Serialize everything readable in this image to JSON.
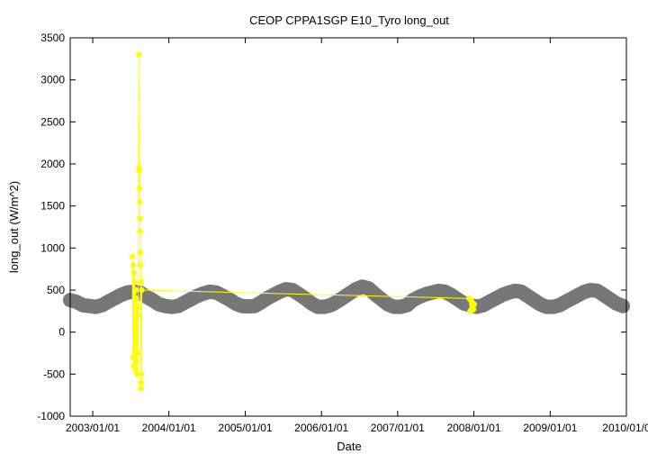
{
  "chart_data": {
    "type": "scatter",
    "title": "CEOP CPPA1SGP E10_Tyro  long_out",
    "xlabel": "Date",
    "ylabel": "long_out (W/m^2)",
    "xlim": [
      "2002/09/15",
      "2010/01/01"
    ],
    "ylim": [
      -1000,
      3500
    ],
    "y_ticks": [
      -1000,
      -500,
      0,
      500,
      1000,
      1500,
      2000,
      2500,
      3000,
      3500
    ],
    "x_ticks": [
      "2003/01/01",
      "2004/01/01",
      "2005/01/01",
      "2006/01/01",
      "2007/01/01",
      "2008/01/01",
      "2009/01/01",
      "2010/01/0"
    ],
    "grid": false,
    "legend": "none",
    "series": [
      {
        "color": "#777777",
        "mode": "points",
        "points": [
          {
            "x": "2002/09/15",
            "y": 380
          },
          {
            "x": "2002/10/15",
            "y": 360
          },
          {
            "x": "2002/11/15",
            "y": 320
          },
          {
            "x": "2002/12/15",
            "y": 310
          },
          {
            "x": "2003/01/15",
            "y": 300
          },
          {
            "x": "2003/02/15",
            "y": 320
          },
          {
            "x": "2003/03/15",
            "y": 360
          },
          {
            "x": "2003/04/15",
            "y": 400
          },
          {
            "x": "2003/05/15",
            "y": 440
          },
          {
            "x": "2003/06/15",
            "y": 470
          },
          {
            "x": "2003/07/15",
            "y": 480
          },
          {
            "x": "2003/08/15",
            "y": 470
          },
          {
            "x": "2003/09/15",
            "y": 420
          },
          {
            "x": "2003/10/15",
            "y": 380
          },
          {
            "x": "2003/11/15",
            "y": 330
          },
          {
            "x": "2003/12/15",
            "y": 310
          },
          {
            "x": "2004/01/15",
            "y": 300
          },
          {
            "x": "2004/02/15",
            "y": 310
          },
          {
            "x": "2004/03/15",
            "y": 350
          },
          {
            "x": "2004/04/15",
            "y": 390
          },
          {
            "x": "2004/05/15",
            "y": 430
          },
          {
            "x": "2004/06/15",
            "y": 460
          },
          {
            "x": "2004/07/15",
            "y": 480
          },
          {
            "x": "2004/08/15",
            "y": 470
          },
          {
            "x": "2004/09/15",
            "y": 430
          },
          {
            "x": "2004/10/15",
            "y": 390
          },
          {
            "x": "2004/11/15",
            "y": 340
          },
          {
            "x": "2004/12/15",
            "y": 310
          },
          {
            "x": "2005/01/15",
            "y": 305
          },
          {
            "x": "2005/02/15",
            "y": 310
          },
          {
            "x": "2005/03/15",
            "y": 350
          },
          {
            "x": "2005/04/15",
            "y": 400
          },
          {
            "x": "2005/05/15",
            "y": 440
          },
          {
            "x": "2005/06/15",
            "y": 480
          },
          {
            "x": "2005/07/15",
            "y": 510
          },
          {
            "x": "2005/08/15",
            "y": 500
          },
          {
            "x": "2005/09/15",
            "y": 450
          },
          {
            "x": "2005/10/15",
            "y": 400
          },
          {
            "x": "2005/11/15",
            "y": 340
          },
          {
            "x": "2005/12/15",
            "y": 300
          },
          {
            "x": "2006/01/15",
            "y": 300
          },
          {
            "x": "2006/02/15",
            "y": 320
          },
          {
            "x": "2006/03/15",
            "y": 360
          },
          {
            "x": "2006/04/15",
            "y": 410
          },
          {
            "x": "2006/05/15",
            "y": 460
          },
          {
            "x": "2006/06/15",
            "y": 510
          },
          {
            "x": "2006/07/15",
            "y": 540
          },
          {
            "x": "2006/08/15",
            "y": 520
          },
          {
            "x": "2006/09/15",
            "y": 450
          },
          {
            "x": "2006/10/15",
            "y": 390
          },
          {
            "x": "2006/11/15",
            "y": 330
          },
          {
            "x": "2006/12/15",
            "y": 300
          },
          {
            "x": "2007/01/15",
            "y": 300
          },
          {
            "x": "2007/02/15",
            "y": 320
          },
          {
            "x": "2007/03/15",
            "y": 380
          },
          {
            "x": "2007/04/15",
            "y": 420
          },
          {
            "x": "2007/05/15",
            "y": 450
          },
          {
            "x": "2007/06/15",
            "y": 470
          },
          {
            "x": "2007/07/15",
            "y": 490
          },
          {
            "x": "2007/08/15",
            "y": 480
          },
          {
            "x": "2007/09/15",
            "y": 440
          },
          {
            "x": "2007/10/15",
            "y": 390
          },
          {
            "x": "2007/11/15",
            "y": 340
          },
          {
            "x": "2007/12/15",
            "y": 320
          },
          {
            "x": "2008/01/15",
            "y": 300
          },
          {
            "x": "2008/02/15",
            "y": 320
          },
          {
            "x": "2008/03/15",
            "y": 360
          },
          {
            "x": "2008/04/15",
            "y": 400
          },
          {
            "x": "2008/05/15",
            "y": 440
          },
          {
            "x": "2008/06/15",
            "y": 470
          },
          {
            "x": "2008/07/15",
            "y": 490
          },
          {
            "x": "2008/08/15",
            "y": 480
          },
          {
            "x": "2008/09/15",
            "y": 430
          },
          {
            "x": "2008/10/15",
            "y": 380
          },
          {
            "x": "2008/11/15",
            "y": 330
          },
          {
            "x": "2008/12/15",
            "y": 300
          },
          {
            "x": "2009/01/15",
            "y": 300
          },
          {
            "x": "2009/02/15",
            "y": 320
          },
          {
            "x": "2009/03/15",
            "y": 360
          },
          {
            "x": "2009/04/15",
            "y": 400
          },
          {
            "x": "2009/05/15",
            "y": 440
          },
          {
            "x": "2009/06/15",
            "y": 480
          },
          {
            "x": "2009/07/15",
            "y": 500
          },
          {
            "x": "2009/08/15",
            "y": 490
          },
          {
            "x": "2009/09/15",
            "y": 440
          },
          {
            "x": "2009/10/15",
            "y": 390
          },
          {
            "x": "2009/11/15",
            "y": 340
          },
          {
            "x": "2009/12/15",
            "y": 310
          }
        ]
      },
      {
        "color": "#ffff00",
        "mode": "points-and-lines",
        "points": [
          {
            "x": "2003/07/10",
            "y": 900
          },
          {
            "x": "2003/07/12",
            "y": -300
          },
          {
            "x": "2003/07/14",
            "y": 800
          },
          {
            "x": "2003/07/16",
            "y": -400
          },
          {
            "x": "2003/07/18",
            "y": 700
          },
          {
            "x": "2003/07/20",
            "y": -200
          },
          {
            "x": "2003/07/22",
            "y": 600
          },
          {
            "x": "2003/07/24",
            "y": -450
          },
          {
            "x": "2003/07/26",
            "y": 500
          },
          {
            "x": "2003/07/28",
            "y": -350
          },
          {
            "x": "2003/07/30",
            "y": 400
          },
          {
            "x": "2003/08/01",
            "y": -500
          },
          {
            "x": "2003/08/03",
            "y": 300
          },
          {
            "x": "2003/08/05",
            "y": -250
          },
          {
            "x": "2003/08/07",
            "y": 200
          },
          {
            "x": "2003/08/09",
            "y": 3300
          },
          {
            "x": "2003/08/11",
            "y": 1950
          },
          {
            "x": "2003/08/12",
            "y": 1920
          },
          {
            "x": "2003/08/13",
            "y": 1710
          },
          {
            "x": "2003/08/14",
            "y": 1550
          },
          {
            "x": "2003/08/15",
            "y": 1350
          },
          {
            "x": "2003/08/16",
            "y": 1200
          },
          {
            "x": "2003/08/17",
            "y": 950
          },
          {
            "x": "2003/08/18",
            "y": 800
          },
          {
            "x": "2003/08/19",
            "y": -670
          },
          {
            "x": "2003/08/20",
            "y": -600
          },
          {
            "x": "2003/08/21",
            "y": 600
          },
          {
            "x": "2003/08/22",
            "y": -500
          },
          {
            "x": "2003/08/24",
            "y": 500
          },
          {
            "x": "2007/12/10",
            "y": 400
          },
          {
            "x": "2007/12/14",
            "y": 250
          },
          {
            "x": "2007/12/18",
            "y": 380
          },
          {
            "x": "2007/12/22",
            "y": 260
          },
          {
            "x": "2007/12/26",
            "y": 350
          },
          {
            "x": "2007/12/30",
            "y": 270
          },
          {
            "x": "2008/01/03",
            "y": 330
          }
        ]
      }
    ]
  }
}
